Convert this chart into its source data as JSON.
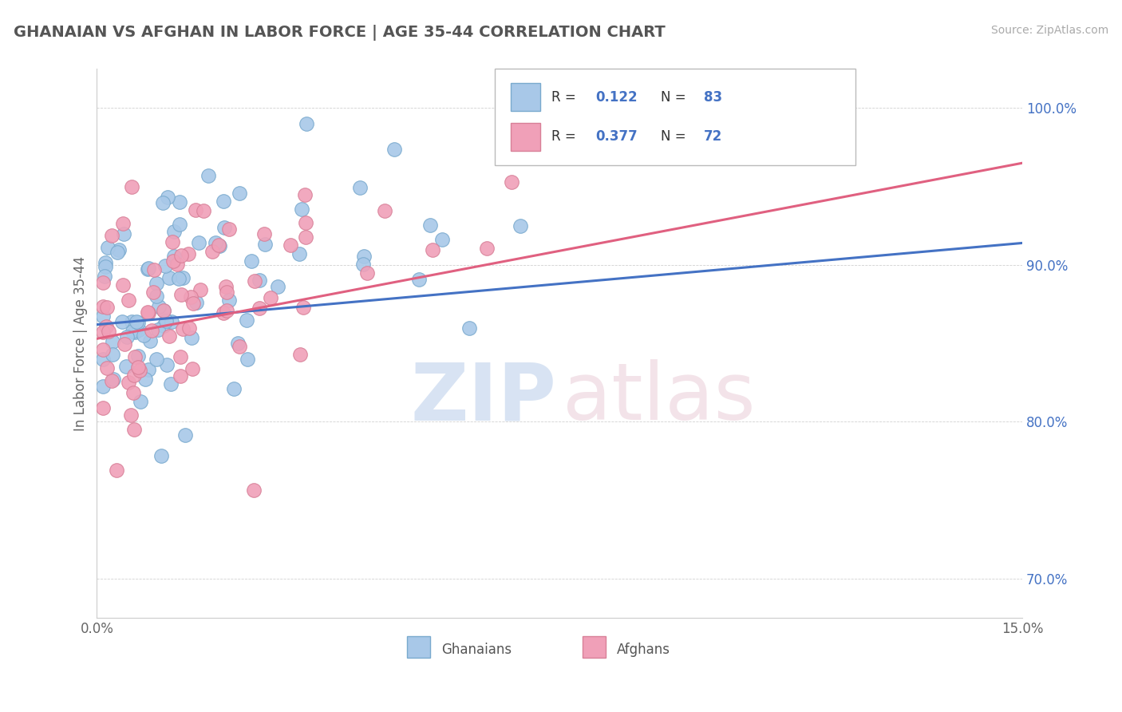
{
  "title": "GHANAIAN VS AFGHAN IN LABOR FORCE | AGE 35-44 CORRELATION CHART",
  "source": "Source: ZipAtlas.com",
  "ylabel_label": "In Labor Force | Age 35-44",
  "r_ghanaian": "0.122",
  "n_ghanaian": "83",
  "r_afghan": "0.377",
  "n_afghan": "72",
  "blue_fill": "#A8C8E8",
  "blue_edge": "#7AAACE",
  "pink_fill": "#F0A0B8",
  "pink_edge": "#D88098",
  "blue_line_color": "#4472C4",
  "pink_line_color": "#E06080",
  "blue_text_color": "#4472C4",
  "value_text_color": "#4472C4",
  "ytick_color": "#4472C4",
  "title_color": "#555555",
  "source_color": "#AAAAAA",
  "grid_color": "#CCCCCC",
  "watermark_zip_color": "#C8D8EE",
  "watermark_atlas_color": "#EED8E0",
  "xmin": 0.0,
  "xmax": 0.15,
  "ymin": 0.675,
  "ymax": 1.025,
  "yticks": [
    0.7,
    0.8,
    0.9,
    1.0
  ],
  "ytick_labels": [
    "70.0%",
    "80.0%",
    "90.0%",
    "100.0%"
  ],
  "xtick_labels": [
    "0.0%",
    "15.0%"
  ]
}
